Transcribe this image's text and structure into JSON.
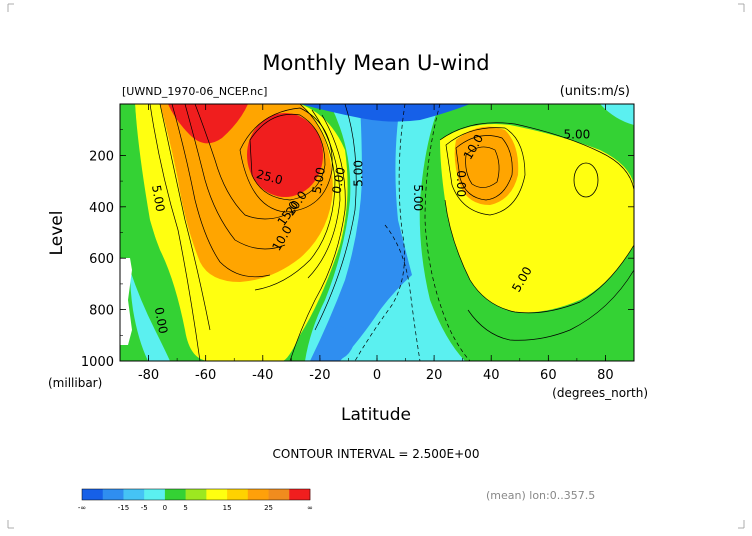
{
  "chart_data": {
    "type": "contour",
    "title": "Monthly Mean U-wind",
    "source_file": "[UWND_1970-06_NCEP.nc]",
    "units_label": "(units:m/s)",
    "xlabel": "Latitude",
    "x_units_label": "(degrees_north)",
    "ylabel": "Level",
    "y_units_label": "(millibar)",
    "xlim": [
      -90,
      90
    ],
    "ylim": [
      1000,
      0
    ],
    "x_ticks": [
      -80,
      -60,
      -40,
      -20,
      0,
      20,
      40,
      60,
      80
    ],
    "x_tick_labels": [
      "-80",
      "-60",
      "-40",
      "-20",
      "0",
      "20",
      "40",
      "60",
      "80"
    ],
    "y_ticks": [
      200,
      400,
      600,
      800,
      1000
    ],
    "y_tick_labels": [
      "200",
      "400",
      "600",
      "800",
      "1000"
    ],
    "contour_interval_text": "CONTOUR INTERVAL = 2.500E+00",
    "mean_note": "(mean) lon:0..357.5",
    "jets": [
      {
        "lat": -62,
        "level": 10,
        "peak": 32.5
      },
      {
        "lat": -30,
        "level": 200,
        "peak": 32.5
      },
      {
        "lat": 40,
        "level": 200,
        "peak": 22.5
      }
    ],
    "contour_labels": [
      {
        "text": "5.00",
        "lat": -78,
        "level": 370,
        "rotate": 80
      },
      {
        "text": "0.00",
        "lat": -77,
        "level": 845,
        "rotate": 80
      },
      {
        "text": "25.0",
        "lat": -38,
        "level": 300,
        "rotate": 15
      },
      {
        "text": "20.0",
        "lat": -27,
        "level": 395,
        "rotate": -55
      },
      {
        "text": "15.0",
        "lat": -30,
        "level": 435,
        "rotate": -55
      },
      {
        "text": "10.0",
        "lat": -32,
        "level": 530,
        "rotate": -60
      },
      {
        "text": "5.00",
        "lat": -19,
        "level": 300,
        "rotate": -80
      },
      {
        "text": "0.00",
        "lat": -12,
        "level": 300,
        "rotate": -80
      },
      {
        "text": "5.00",
        "lat": -5,
        "level": 270,
        "rotate": -90
      },
      {
        "text": "5.00",
        "lat": 13,
        "level": 365,
        "rotate": 90
      },
      {
        "text": "0.00",
        "lat": 28,
        "level": 310,
        "rotate": 90
      },
      {
        "text": "10.0",
        "lat": 35,
        "level": 175,
        "rotate": -60
      },
      {
        "text": "5.00",
        "lat": 70,
        "level": 135,
        "rotate": 0
      },
      {
        "text": "5.00",
        "lat": 52,
        "level": 690,
        "rotate": -60
      }
    ],
    "colorbar": {
      "colors": [
        "#1660e8",
        "#2f8ef0",
        "#45c3f5",
        "#5bf0f0",
        "#34d234",
        "#9de820",
        "#ffff10",
        "#ffd200",
        "#ffa00a",
        "#f08c1e",
        "#f01e1e"
      ],
      "labels": [
        "-∞",
        "-15",
        "-5",
        "0",
        "5",
        "15",
        "25",
        "∞"
      ]
    }
  }
}
